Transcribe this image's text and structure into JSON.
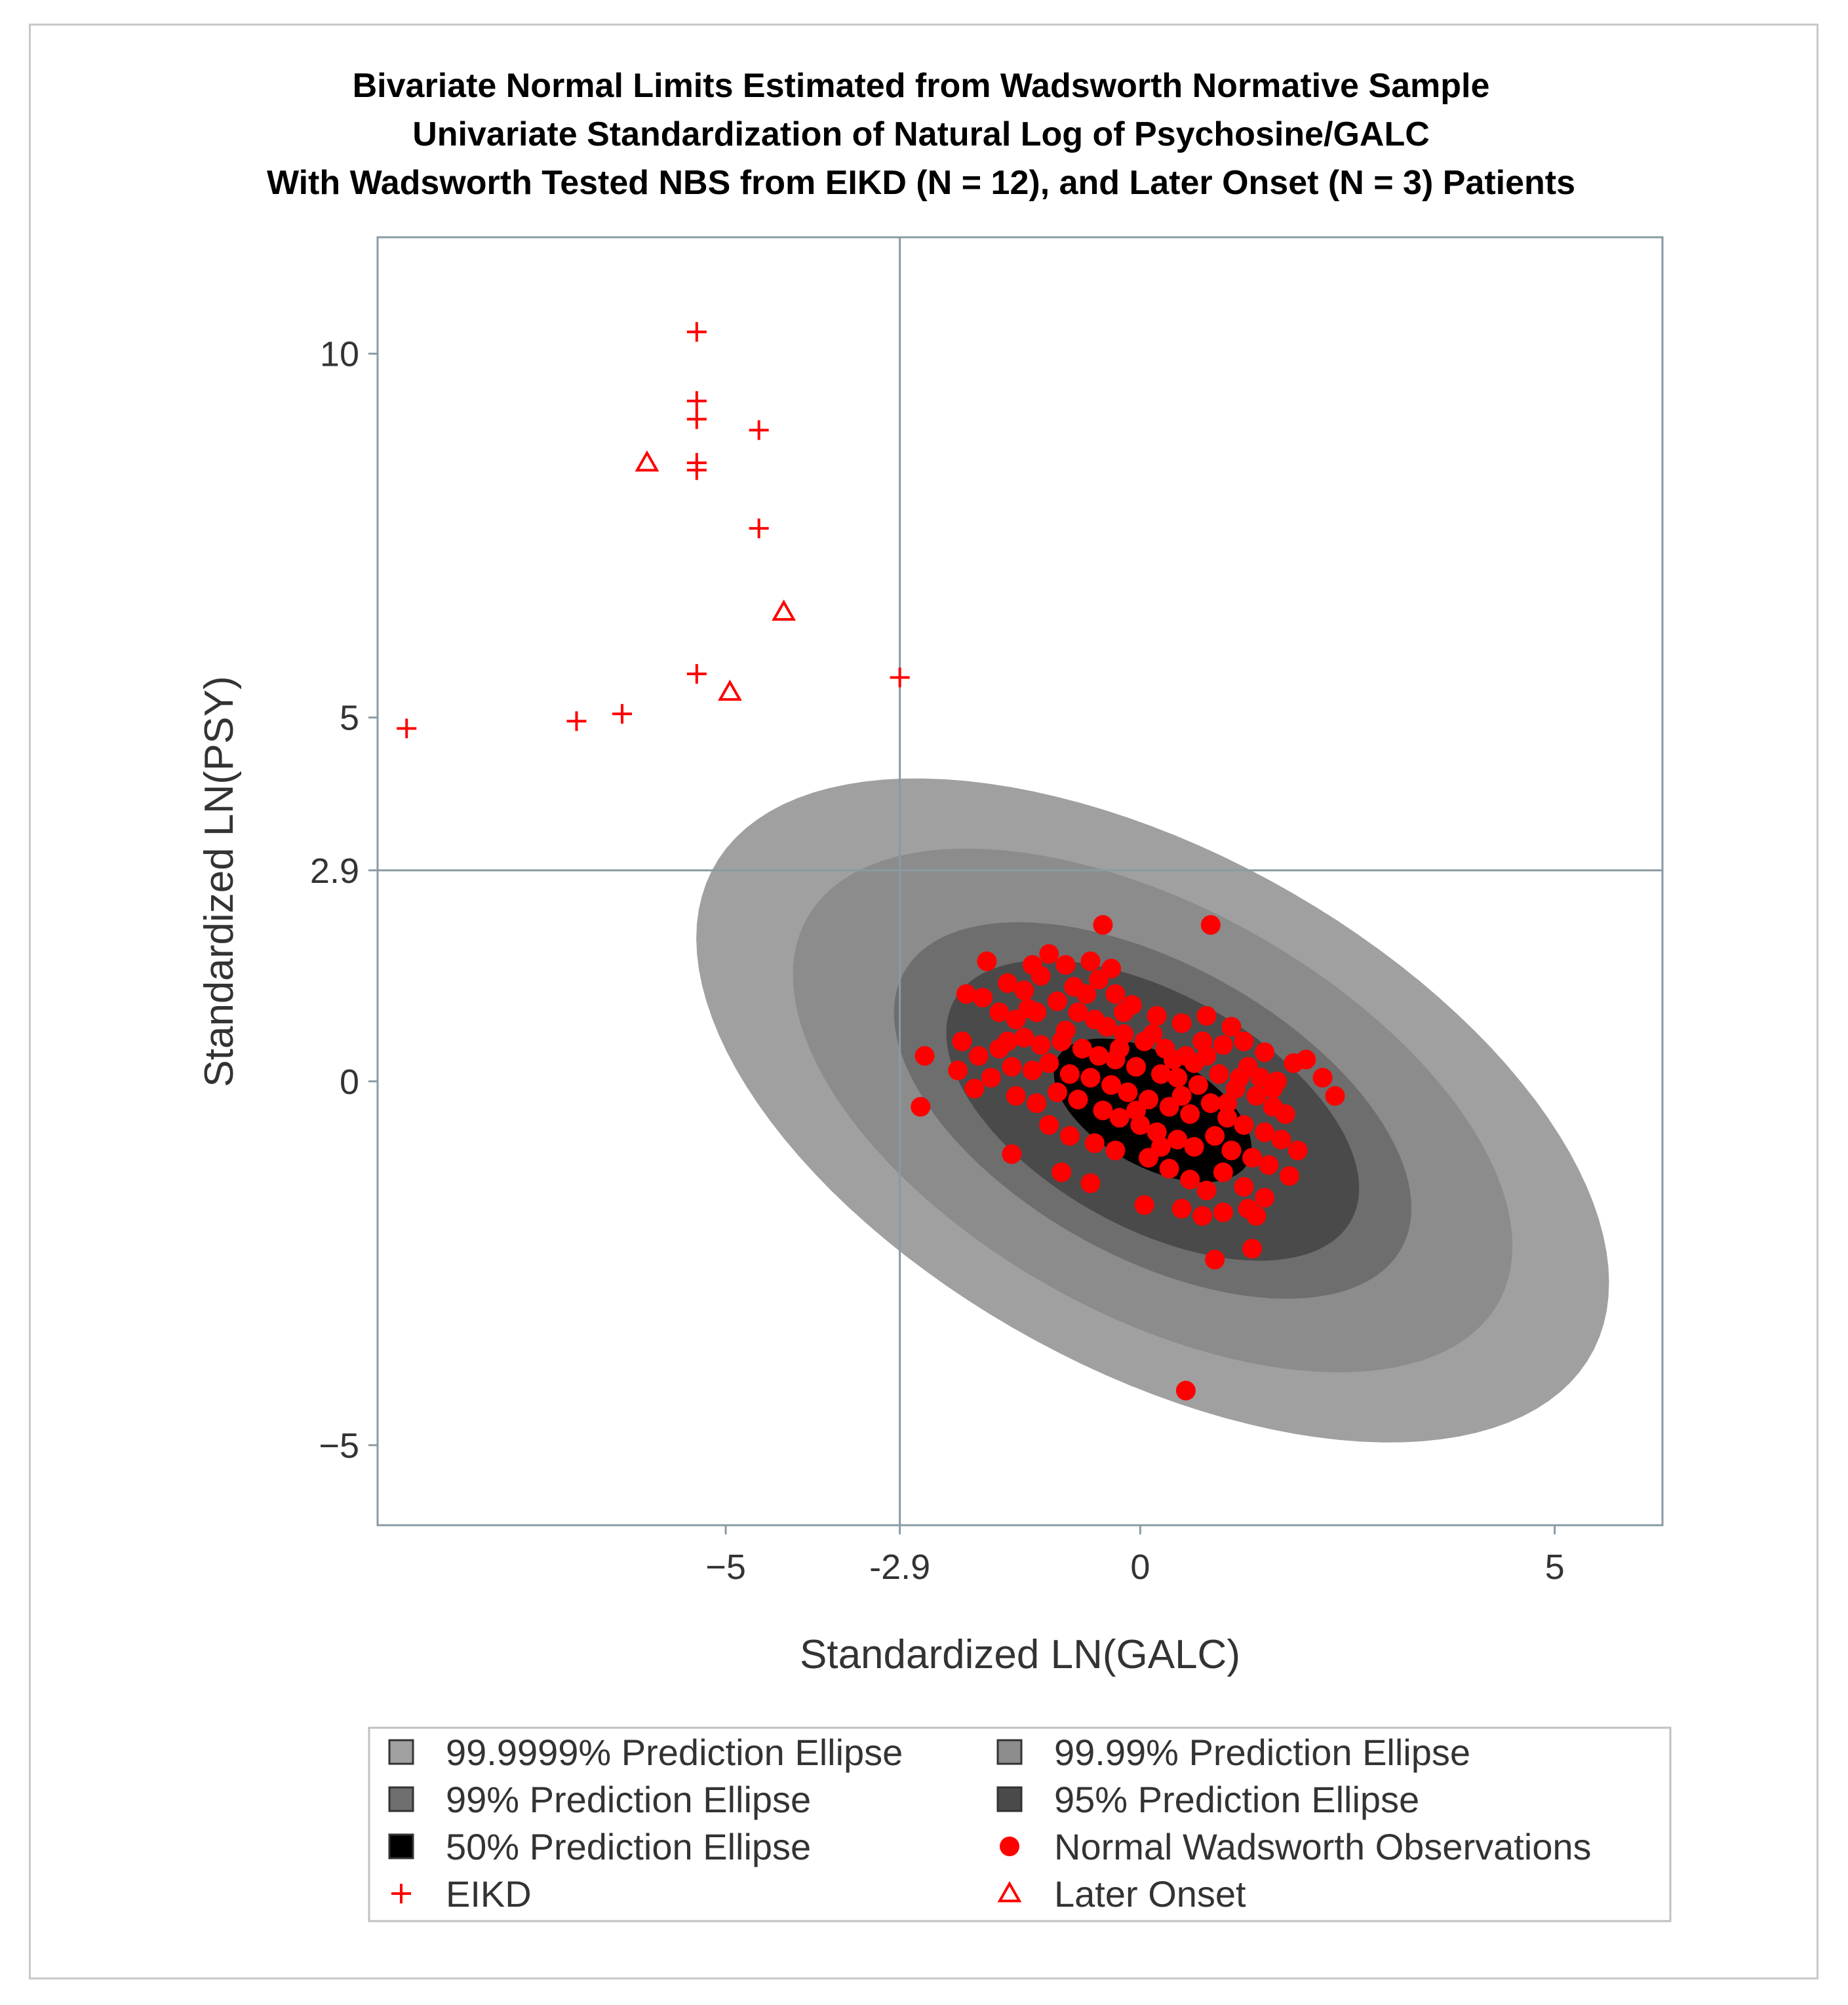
{
  "chart_data": {
    "type": "scatter",
    "title": [
      "Bivariate Normal Limits Estimated from Wadsworth Normative Sample",
      "Univariate Standardization of Natural Log of Psychosine/GALC",
      "With Wadsworth Tested NBS from EIKD (N = 12), and Later Onset (N = 3) Patients"
    ],
    "xlabel": "Standardized LN(GALC)",
    "ylabel": "Standardized LN(PSY)",
    "xlim": [
      -9.2,
      6.3
    ],
    "ylim": [
      -6.1,
      11.6
    ],
    "xticks": [
      {
        "value": -5,
        "label": "−5"
      },
      {
        "value": -2.9,
        "label": "-2.9"
      },
      {
        "value": 0,
        "label": "0"
      },
      {
        "value": 5,
        "label": "5"
      }
    ],
    "yticks": [
      {
        "value": -5,
        "label": "−5"
      },
      {
        "value": 0,
        "label": "0"
      },
      {
        "value": 2.9,
        "label": "2.9"
      },
      {
        "value": 5,
        "label": "5"
      },
      {
        "value": 10,
        "label": "10"
      }
    ],
    "reference_lines": {
      "x": -2.9,
      "y": 2.9
    },
    "ellipses": [
      {
        "level": "99.9999%",
        "label": "99.9999% Prediction Ellipse",
        "rx": 6.28,
        "ry": 3.42,
        "color": "#a0a0a0"
      },
      {
        "level": "99.99%",
        "label": "99.99% Prediction Ellipse",
        "rx": 4.95,
        "ry": 2.7,
        "color": "#8c8c8c"
      },
      {
        "level": "99%",
        "label": "99% Prediction Ellipse",
        "rx": 3.56,
        "ry": 1.94,
        "color": "#6e6e6e"
      },
      {
        "level": "95%",
        "label": "95% Prediction Ellipse",
        "rx": 2.84,
        "ry": 1.55,
        "color": "#4a4a4a"
      },
      {
        "level": "50%",
        "label": "50% Prediction Ellipse",
        "rx": 1.36,
        "ry": 0.74,
        "color": "#000000"
      }
    ],
    "ellipse_center": [
      0.15,
      -0.4
    ],
    "ellipse_angle_deg": 35,
    "series": [
      {
        "name": "Normal Wadsworth Observations",
        "marker": "circle",
        "color": "#ff0000",
        "points": [
          [
            -0.45,
            2.15
          ],
          [
            0.85,
            2.15
          ],
          [
            -1.85,
            1.65
          ],
          [
            -1.9,
            1.15
          ],
          [
            -2.1,
            1.2
          ],
          [
            -1.3,
            1.6
          ],
          [
            -1.1,
            1.75
          ],
          [
            -0.9,
            1.6
          ],
          [
            -0.6,
            1.65
          ],
          [
            -0.35,
            1.55
          ],
          [
            -1.6,
            1.35
          ],
          [
            -1.4,
            1.25
          ],
          [
            -1.2,
            1.45
          ],
          [
            -0.8,
            1.3
          ],
          [
            -0.5,
            1.4
          ],
          [
            -0.3,
            1.2
          ],
          [
            -0.1,
            1.05
          ],
          [
            0.2,
            0.9
          ],
          [
            0.5,
            0.8
          ],
          [
            0.8,
            0.9
          ],
          [
            1.1,
            0.75
          ],
          [
            1.25,
            0.55
          ],
          [
            1.5,
            0.4
          ],
          [
            -1.7,
            0.95
          ],
          [
            -1.5,
            0.85
          ],
          [
            -1.25,
            0.95
          ],
          [
            -1.0,
            1.1
          ],
          [
            -0.75,
            0.95
          ],
          [
            -0.55,
            0.85
          ],
          [
            -0.4,
            0.75
          ],
          [
            -0.2,
            0.65
          ],
          [
            0.05,
            0.55
          ],
          [
            0.3,
            0.45
          ],
          [
            0.55,
            0.35
          ],
          [
            0.8,
            0.35
          ],
          [
            1.0,
            0.5
          ],
          [
            1.3,
            0.2
          ],
          [
            1.45,
            0.05
          ],
          [
            1.65,
            0.0
          ],
          [
            1.85,
            0.25
          ],
          [
            2.0,
            0.3
          ],
          [
            2.2,
            0.05
          ],
          [
            2.35,
            -0.2
          ],
          [
            -2.15,
            0.55
          ],
          [
            -1.95,
            0.35
          ],
          [
            -1.7,
            0.45
          ],
          [
            -1.4,
            0.6
          ],
          [
            -1.2,
            0.5
          ],
          [
            -0.95,
            0.55
          ],
          [
            -0.7,
            0.45
          ],
          [
            -0.5,
            0.35
          ],
          [
            -0.3,
            0.3
          ],
          [
            -0.05,
            0.2
          ],
          [
            0.25,
            0.1
          ],
          [
            0.45,
            0.05
          ],
          [
            0.7,
            -0.05
          ],
          [
            0.95,
            0.1
          ],
          [
            1.15,
            -0.1
          ],
          [
            1.4,
            -0.2
          ],
          [
            1.6,
            -0.35
          ],
          [
            1.75,
            -0.45
          ],
          [
            -2.2,
            0.15
          ],
          [
            -2.0,
            -0.1
          ],
          [
            -1.8,
            0.05
          ],
          [
            -1.55,
            0.2
          ],
          [
            -1.3,
            0.15
          ],
          [
            -1.1,
            0.25
          ],
          [
            -0.85,
            0.1
          ],
          [
            -0.6,
            0.05
          ],
          [
            -0.35,
            -0.05
          ],
          [
            -0.15,
            -0.15
          ],
          [
            0.1,
            -0.25
          ],
          [
            0.35,
            -0.35
          ],
          [
            0.6,
            -0.45
          ],
          [
            0.85,
            -0.3
          ],
          [
            1.05,
            -0.5
          ],
          [
            1.25,
            -0.6
          ],
          [
            1.5,
            -0.7
          ],
          [
            1.7,
            -0.8
          ],
          [
            1.9,
            -0.95
          ],
          [
            -1.5,
            -0.2
          ],
          [
            -1.25,
            -0.3
          ],
          [
            -1.0,
            -0.15
          ],
          [
            -0.75,
            -0.25
          ],
          [
            -0.45,
            -0.4
          ],
          [
            -0.25,
            -0.5
          ],
          [
            0.0,
            -0.6
          ],
          [
            0.2,
            -0.7
          ],
          [
            0.45,
            -0.8
          ],
          [
            0.65,
            -0.9
          ],
          [
            0.9,
            -0.75
          ],
          [
            1.1,
            -0.95
          ],
          [
            1.35,
            -1.05
          ],
          [
            1.55,
            -1.15
          ],
          [
            1.8,
            -1.3
          ],
          [
            -1.1,
            -0.6
          ],
          [
            -0.85,
            -0.75
          ],
          [
            -0.55,
            -0.85
          ],
          [
            -0.3,
            -0.95
          ],
          [
            0.1,
            -1.05
          ],
          [
            0.35,
            -1.2
          ],
          [
            0.6,
            -1.35
          ],
          [
            0.8,
            -1.5
          ],
          [
            1.0,
            -1.25
          ],
          [
            1.25,
            -1.45
          ],
          [
            1.5,
            -1.6
          ],
          [
            -0.6,
            -1.4
          ],
          [
            0.05,
            -1.7
          ],
          [
            0.5,
            -1.75
          ],
          [
            0.75,
            -1.85
          ],
          [
            1.0,
            -1.8
          ],
          [
            1.3,
            -1.75
          ],
          [
            1.4,
            -1.85
          ],
          [
            0.9,
            -2.45
          ],
          [
            1.35,
            -2.3
          ],
          [
            0.55,
            -4.25
          ],
          [
            -2.6,
            0.35
          ],
          [
            -2.65,
            -0.35
          ],
          [
            -1.55,
            -1.0
          ],
          [
            -0.95,
            -1.25
          ],
          [
            -0.2,
            0.95
          ],
          [
            0.15,
            0.65
          ],
          [
            0.65,
            0.25
          ],
          [
            -0.05,
            -0.4
          ],
          [
            0.4,
            0.3
          ],
          [
            0.75,
            0.55
          ],
          [
            1.2,
            0.05
          ],
          [
            -1.35,
            1.0
          ],
          [
            -0.65,
            1.2
          ],
          [
            -0.25,
            0.45
          ],
          [
            0.5,
            -0.2
          ],
          [
            1.05,
            -0.3
          ],
          [
            1.6,
            -0.1
          ],
          [
            -0.9,
            0.7
          ],
          [
            -1.6,
            0.55
          ],
          [
            0.25,
            -0.9
          ]
        ]
      },
      {
        "name": "EIKD",
        "marker": "plus",
        "color": "#ff0000",
        "points": [
          [
            -5.35,
            10.3
          ],
          [
            -5.35,
            9.35
          ],
          [
            -5.35,
            9.1
          ],
          [
            -5.35,
            8.5
          ],
          [
            -5.35,
            8.4
          ],
          [
            -4.6,
            8.95
          ],
          [
            -4.6,
            7.6
          ],
          [
            -5.35,
            5.6
          ],
          [
            -2.9,
            5.55
          ],
          [
            -6.25,
            5.05
          ],
          [
            -6.8,
            4.95
          ],
          [
            -8.85,
            4.85
          ]
        ]
      },
      {
        "name": "Later Onset",
        "marker": "triangle",
        "color": "#ff0000",
        "points": [
          [
            -5.95,
            8.5
          ],
          [
            -4.3,
            6.45
          ],
          [
            -4.95,
            5.35
          ]
        ]
      }
    ],
    "legend": {
      "placement": "bottom",
      "entries": [
        {
          "label": "99.9999% Prediction Ellipse",
          "symbol": "square",
          "color": "#a0a0a0"
        },
        {
          "label": "99.99% Prediction Ellipse",
          "symbol": "square",
          "color": "#8c8c8c"
        },
        {
          "label": "99% Prediction Ellipse",
          "symbol": "square",
          "color": "#6e6e6e"
        },
        {
          "label": "95% Prediction Ellipse",
          "symbol": "square",
          "color": "#4a4a4a"
        },
        {
          "label": "50% Prediction Ellipse",
          "symbol": "square",
          "color": "#000000"
        },
        {
          "label": "Normal Wadsworth Observations",
          "symbol": "circle",
          "color": "#ff0000"
        },
        {
          "label": "EIKD",
          "symbol": "plus",
          "color": "#ff0000"
        },
        {
          "label": "Later Onset",
          "symbol": "triangle",
          "color": "#ff0000"
        }
      ]
    }
  }
}
